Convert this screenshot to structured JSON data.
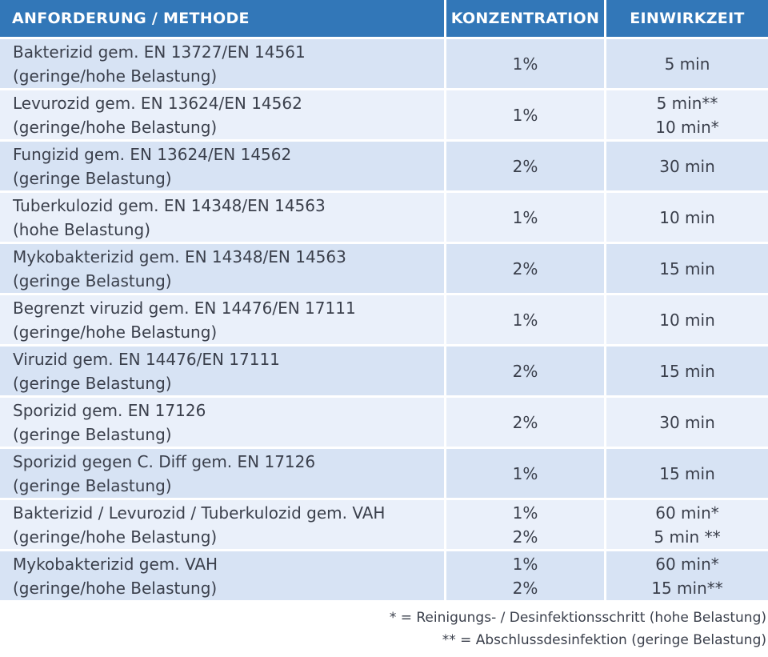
{
  "header": {
    "method": "ANFORDERUNG / METHODE",
    "concentration": "KONZENTRATION",
    "time": "EINWIRKZEIT"
  },
  "rows": [
    {
      "method": [
        "Bakterizid gem. EN 13727/EN 14561",
        "(geringe/hohe Belastung)"
      ],
      "concentration": [
        "1%"
      ],
      "time": [
        "5 min"
      ]
    },
    {
      "method": [
        "Levurozid gem. EN 13624/EN 14562",
        "(geringe/hohe Belastung)"
      ],
      "concentration": [
        "1%"
      ],
      "time": [
        "5 min**",
        "10 min*"
      ]
    },
    {
      "method": [
        "Fungizid gem. EN 13624/EN 14562",
        "(geringe Belastung)"
      ],
      "concentration": [
        "2%"
      ],
      "time": [
        "30 min"
      ]
    },
    {
      "method": [
        "Tuberkulozid gem. EN 14348/EN 14563",
        "(hohe Belastung)"
      ],
      "concentration": [
        "1%"
      ],
      "time": [
        "10 min"
      ]
    },
    {
      "method": [
        "Mykobakterizid gem. EN 14348/EN 14563",
        "(geringe Belastung)"
      ],
      "concentration": [
        "2%"
      ],
      "time": [
        "15 min"
      ]
    },
    {
      "method": [
        "Begrenzt viruzid gem. EN 14476/EN 17111",
        "(geringe/hohe Belastung)"
      ],
      "concentration": [
        "1%"
      ],
      "time": [
        "10 min"
      ]
    },
    {
      "method": [
        "Viruzid gem. EN 14476/EN 17111",
        "(geringe Belastung)"
      ],
      "concentration": [
        "2%"
      ],
      "time": [
        "15 min"
      ]
    },
    {
      "method": [
        "Sporizid gem. EN 17126",
        "(geringe Belastung)"
      ],
      "concentration": [
        "2%"
      ],
      "time": [
        "30 min"
      ]
    },
    {
      "method": [
        "Sporizid gegen C. Diff gem. EN 17126",
        "(geringe Belastung)"
      ],
      "concentration": [
        "1%"
      ],
      "time": [
        "15 min"
      ]
    },
    {
      "method": [
        "Bakterizid / Levurozid / Tuberkulozid gem. VAH",
        "(geringe/hohe Belastung)"
      ],
      "concentration": [
        "1%",
        "2%"
      ],
      "time": [
        "60 min*",
        "5 min **"
      ]
    },
    {
      "method": [
        "Mykobakterizid gem. VAH",
        "(geringe/hohe Belastung)"
      ],
      "concentration": [
        "1%",
        "2%"
      ],
      "time": [
        "60 min*",
        "15 min**"
      ]
    }
  ],
  "footnotes": [
    "* = Reinigungs- / Desinfektionsschritt (hohe Belastung)",
    "** = Abschlussdesinfektion (geringe Belastung)"
  ],
  "colors": {
    "header_bg": "#3277b8",
    "row_odd_bg": "#d7e3f4",
    "row_even_bg": "#eaf0fa",
    "text": "#3a3f4b"
  }
}
